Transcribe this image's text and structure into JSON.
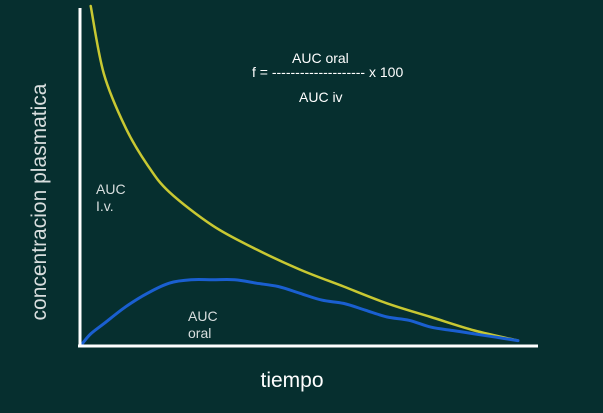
{
  "chart_data": {
    "type": "line",
    "title": "",
    "xlabel": "tiempo",
    "ylabel": "concentracion plasmatica",
    "xlim": [
      0,
      1
    ],
    "ylim": [
      0,
      1
    ],
    "grid": false,
    "legend": "none",
    "series": [
      {
        "color": "#c8c832",
        "x": [
          0.02,
          0.05,
          0.1,
          0.15,
          0.2,
          0.3,
          0.4,
          0.5,
          0.6,
          0.7,
          0.8,
          0.9,
          1.0
        ],
        "y": [
          1.0,
          0.8,
          0.64,
          0.53,
          0.45,
          0.35,
          0.28,
          0.22,
          0.17,
          0.12,
          0.08,
          0.04,
          0.01
        ]
      },
      {
        "color": "#1a5fd0",
        "x": [
          0.0,
          0.02,
          0.05,
          0.1,
          0.15,
          0.2,
          0.25,
          0.3,
          0.35,
          0.4,
          0.45,
          0.5,
          0.55,
          0.6,
          0.65,
          0.7,
          0.75,
          0.8,
          0.85,
          0.9,
          0.95,
          1.0
        ],
        "y": [
          0.0,
          0.03,
          0.06,
          0.11,
          0.15,
          0.18,
          0.19,
          0.19,
          0.19,
          0.18,
          0.17,
          0.15,
          0.13,
          0.12,
          0.1,
          0.08,
          0.07,
          0.05,
          0.04,
          0.03,
          0.02,
          0.01
        ]
      }
    ],
    "annotations": [
      {
        "id": "iv",
        "text": "AUC\nI.v."
      },
      {
        "id": "oral",
        "text": "AUC\noral"
      }
    ]
  },
  "formula": {
    "numerator": "AUC oral",
    "lhs_line": "f = -------------------- x 100",
    "denominator": "AUC iv"
  },
  "colors": {
    "background": "#062f2f",
    "axes": "#ffffff"
  }
}
